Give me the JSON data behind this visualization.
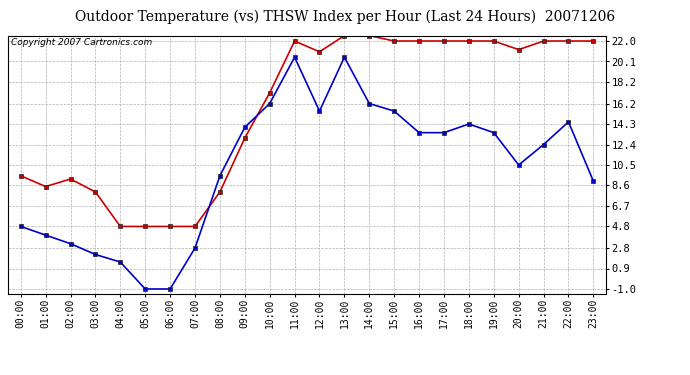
{
  "title": "Outdoor Temperature (vs) THSW Index per Hour (Last 24 Hours)  20071206",
  "copyright": "Copyright 2007 Cartronics.com",
  "hours": [
    "00:00",
    "01:00",
    "02:00",
    "03:00",
    "04:00",
    "05:00",
    "06:00",
    "07:00",
    "08:00",
    "09:00",
    "10:00",
    "11:00",
    "12:00",
    "13:00",
    "14:00",
    "15:00",
    "16:00",
    "17:00",
    "18:00",
    "19:00",
    "20:00",
    "21:00",
    "22:00",
    "23:00"
  ],
  "red_data": [
    9.5,
    8.5,
    9.2,
    8.0,
    4.8,
    4.8,
    4.8,
    4.8,
    8.0,
    13.0,
    17.2,
    22.0,
    21.0,
    22.5,
    22.5,
    22.0,
    22.0,
    22.0,
    22.0,
    22.0,
    21.2,
    22.0,
    22.0,
    22.0
  ],
  "blue_data": [
    4.8,
    4.0,
    3.2,
    2.2,
    1.5,
    -1.0,
    -1.0,
    2.8,
    9.5,
    14.0,
    16.2,
    20.5,
    15.5,
    20.5,
    16.2,
    15.5,
    13.5,
    13.5,
    14.3,
    13.5,
    10.5,
    12.4,
    14.5,
    9.0
  ],
  "yticks": [
    -1.0,
    0.9,
    2.8,
    4.8,
    6.7,
    8.6,
    10.5,
    12.4,
    14.3,
    16.2,
    18.2,
    20.1,
    22.0
  ],
  "ymin": -1.5,
  "ymax": 22.5,
  "red_color": "#cc0000",
  "blue_color": "#0000cc",
  "bg_color": "#ffffff",
  "grid_color": "#b0b0b0",
  "title_fontsize": 10,
  "copyright_fontsize": 6.5,
  "tick_fontsize": 7,
  "ytick_fontsize": 7.5
}
